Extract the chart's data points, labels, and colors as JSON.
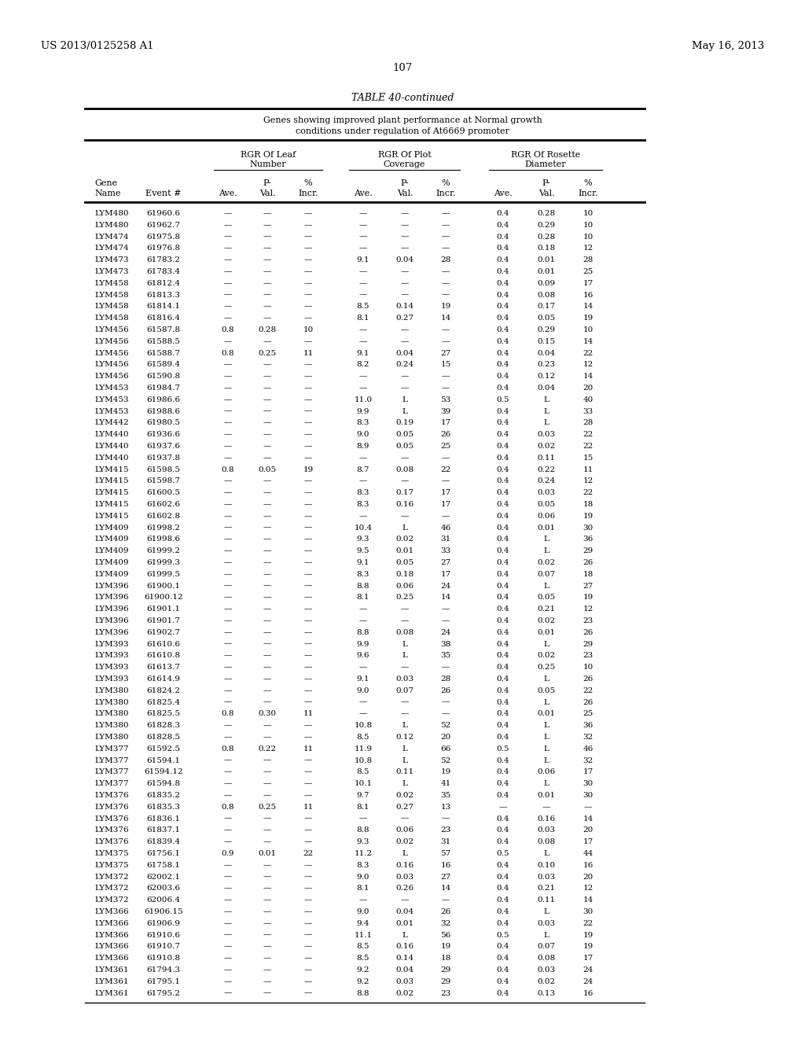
{
  "title_left": "US 2013/0125258 A1",
  "title_right": "May 16, 2013",
  "page_number": "107",
  "table_title": "TABLE 40-continued",
  "table_subtitle1": "Genes showing improved plant performance at Normal growth",
  "table_subtitle2": "conditions under regulation of At6669 promoter",
  "rows": [
    [
      "LYM480",
      "61960.6",
      "—",
      "—",
      "—",
      "—",
      "—",
      "—",
      "0.4",
      "0.28",
      "10"
    ],
    [
      "LYM480",
      "61962.7",
      "—",
      "—",
      "—",
      "—",
      "—",
      "—",
      "0.4",
      "0.29",
      "10"
    ],
    [
      "LYM474",
      "61975.8",
      "—",
      "—",
      "—",
      "—",
      "—",
      "—",
      "0.4",
      "0.28",
      "10"
    ],
    [
      "LYM474",
      "61976.8",
      "—",
      "—",
      "—",
      "—",
      "—",
      "—",
      "0.4",
      "0.18",
      "12"
    ],
    [
      "LYM473",
      "61783.2",
      "—",
      "—",
      "—",
      "9.1",
      "0.04",
      "28",
      "0.4",
      "0.01",
      "28"
    ],
    [
      "LYM473",
      "61783.4",
      "—",
      "—",
      "—",
      "—",
      "—",
      "—",
      "0.4",
      "0.01",
      "25"
    ],
    [
      "LYM458",
      "61812.4",
      "—",
      "—",
      "—",
      "—",
      "—",
      "—",
      "0.4",
      "0.09",
      "17"
    ],
    [
      "LYM458",
      "61813.3",
      "—",
      "—",
      "—",
      "—",
      "—",
      "—",
      "0.4",
      "0.08",
      "16"
    ],
    [
      "LYM458",
      "61814.1",
      "—",
      "—",
      "—",
      "8.5",
      "0.14",
      "19",
      "0.4",
      "0.17",
      "14"
    ],
    [
      "LYM458",
      "61816.4",
      "—",
      "—",
      "—",
      "8.1",
      "0.27",
      "14",
      "0.4",
      "0.05",
      "19"
    ],
    [
      "LYM456",
      "61587.8",
      "0.8",
      "0.28",
      "10",
      "—",
      "—",
      "—",
      "0.4",
      "0.29",
      "10"
    ],
    [
      "LYM456",
      "61588.5",
      "—",
      "—",
      "—",
      "—",
      "—",
      "—",
      "0.4",
      "0.15",
      "14"
    ],
    [
      "LYM456",
      "61588.7",
      "0.8",
      "0.25",
      "11",
      "9.1",
      "0.04",
      "27",
      "0.4",
      "0.04",
      "22"
    ],
    [
      "LYM456",
      "61589.4",
      "—",
      "—",
      "—",
      "8.2",
      "0.24",
      "15",
      "0.4",
      "0.23",
      "12"
    ],
    [
      "LYM456",
      "61590.8",
      "—",
      "—",
      "—",
      "—",
      "—",
      "—",
      "0.4",
      "0.12",
      "14"
    ],
    [
      "LYM453",
      "61984.7",
      "—",
      "—",
      "—",
      "—",
      "—",
      "—",
      "0.4",
      "0.04",
      "20"
    ],
    [
      "LYM453",
      "61986.6",
      "—",
      "—",
      "—",
      "11.0",
      "L",
      "53",
      "0.5",
      "L",
      "40"
    ],
    [
      "LYM453",
      "61988.6",
      "—",
      "—",
      "—",
      "9.9",
      "L",
      "39",
      "0.4",
      "L",
      "33"
    ],
    [
      "LYM442",
      "61980.5",
      "—",
      "—",
      "—",
      "8.3",
      "0.19",
      "17",
      "0.4",
      "L",
      "28"
    ],
    [
      "LYM440",
      "61936.6",
      "—",
      "—",
      "—",
      "9.0",
      "0.05",
      "26",
      "0.4",
      "0.03",
      "22"
    ],
    [
      "LYM440",
      "61937.6",
      "—",
      "—",
      "—",
      "8.9",
      "0.05",
      "25",
      "0.4",
      "0.02",
      "22"
    ],
    [
      "LYM440",
      "61937.8",
      "—",
      "—",
      "—",
      "—",
      "—",
      "—",
      "0.4",
      "0.11",
      "15"
    ],
    [
      "LYM415",
      "61598.5",
      "0.8",
      "0.05",
      "19",
      "8.7",
      "0.08",
      "22",
      "0.4",
      "0.22",
      "11"
    ],
    [
      "LYM415",
      "61598.7",
      "—",
      "—",
      "—",
      "—",
      "—",
      "—",
      "0.4",
      "0.24",
      "12"
    ],
    [
      "LYM415",
      "61600.5",
      "—",
      "—",
      "—",
      "8.3",
      "0.17",
      "17",
      "0.4",
      "0.03",
      "22"
    ],
    [
      "LYM415",
      "61602.6",
      "—",
      "—",
      "—",
      "8.3",
      "0.16",
      "17",
      "0.4",
      "0.05",
      "18"
    ],
    [
      "LYM415",
      "61602.8",
      "—",
      "—",
      "—",
      "—",
      "—",
      "—",
      "0.4",
      "0.06",
      "19"
    ],
    [
      "LYM409",
      "61998.2",
      "—",
      "—",
      "—",
      "10.4",
      "L",
      "46",
      "0.4",
      "0.01",
      "30"
    ],
    [
      "LYM409",
      "61998.6",
      "—",
      "—",
      "—",
      "9.3",
      "0.02",
      "31",
      "0.4",
      "L",
      "36"
    ],
    [
      "LYM409",
      "61999.2",
      "—",
      "—",
      "—",
      "9.5",
      "0.01",
      "33",
      "0.4",
      "L",
      "29"
    ],
    [
      "LYM409",
      "61999.3",
      "—",
      "—",
      "—",
      "9.1",
      "0.05",
      "27",
      "0.4",
      "0.02",
      "26"
    ],
    [
      "LYM409",
      "61999.5",
      "—",
      "—",
      "—",
      "8.3",
      "0.18",
      "17",
      "0.4",
      "0.07",
      "18"
    ],
    [
      "LYM396",
      "61900.1",
      "—",
      "—",
      "—",
      "8.8",
      "0.06",
      "24",
      "0.4",
      "L",
      "27"
    ],
    [
      "LYM396",
      "61900.12",
      "—",
      "—",
      "—",
      "8.1",
      "0.25",
      "14",
      "0.4",
      "0.05",
      "19"
    ],
    [
      "LYM396",
      "61901.1",
      "—",
      "—",
      "—",
      "—",
      "—",
      "—",
      "0.4",
      "0.21",
      "12"
    ],
    [
      "LYM396",
      "61901.7",
      "—",
      "—",
      "—",
      "—",
      "—",
      "—",
      "0.4",
      "0.02",
      "23"
    ],
    [
      "LYM396",
      "61902.7",
      "—",
      "—",
      "—",
      "8.8",
      "0.08",
      "24",
      "0.4",
      "0.01",
      "26"
    ],
    [
      "LYM393",
      "61610.6",
      "—",
      "—",
      "—",
      "9.9",
      "L",
      "38",
      "0.4",
      "L",
      "29"
    ],
    [
      "LYM393",
      "61610.8",
      "—",
      "—",
      "—",
      "9.6",
      "L",
      "35",
      "0.4",
      "0.02",
      "23"
    ],
    [
      "LYM393",
      "61613.7",
      "—",
      "—",
      "—",
      "—",
      "—",
      "—",
      "0.4",
      "0.25",
      "10"
    ],
    [
      "LYM393",
      "61614.9",
      "—",
      "—",
      "—",
      "9.1",
      "0.03",
      "28",
      "0.4",
      "L",
      "26"
    ],
    [
      "LYM380",
      "61824.2",
      "—",
      "—",
      "—",
      "9.0",
      "0.07",
      "26",
      "0.4",
      "0.05",
      "22"
    ],
    [
      "LYM380",
      "61825.4",
      "—",
      "—",
      "—",
      "—",
      "—",
      "—",
      "0.4",
      "L",
      "26"
    ],
    [
      "LYM380",
      "61825.5",
      "0.8",
      "0.30",
      "11",
      "—",
      "—",
      "—",
      "0.4",
      "0.01",
      "25"
    ],
    [
      "LYM380",
      "61828.3",
      "—",
      "—",
      "—",
      "10.8",
      "L",
      "52",
      "0.4",
      "L",
      "36"
    ],
    [
      "LYM380",
      "61828.5",
      "—",
      "—",
      "—",
      "8.5",
      "0.12",
      "20",
      "0.4",
      "L",
      "32"
    ],
    [
      "LYM377",
      "61592.5",
      "0.8",
      "0.22",
      "11",
      "11.9",
      "L",
      "66",
      "0.5",
      "L",
      "46"
    ],
    [
      "LYM377",
      "61594.1",
      "—",
      "—",
      "—",
      "10.8",
      "L",
      "52",
      "0.4",
      "L",
      "32"
    ],
    [
      "LYM377",
      "61594.12",
      "—",
      "—",
      "—",
      "8.5",
      "0.11",
      "19",
      "0.4",
      "0.06",
      "17"
    ],
    [
      "LYM377",
      "61594.8",
      "—",
      "—",
      "—",
      "10.1",
      "L",
      "41",
      "0.4",
      "L",
      "30"
    ],
    [
      "LYM376",
      "61835.2",
      "—",
      "—",
      "—",
      "9.7",
      "0.02",
      "35",
      "0.4",
      "0.01",
      "30"
    ],
    [
      "LYM376",
      "61835.3",
      "0.8",
      "0.25",
      "11",
      "8.1",
      "0.27",
      "13",
      "—",
      "—",
      "—"
    ],
    [
      "LYM376",
      "61836.1",
      "—",
      "—",
      "—",
      "—",
      "—",
      "—",
      "0.4",
      "0.16",
      "14"
    ],
    [
      "LYM376",
      "61837.1",
      "—",
      "—",
      "—",
      "8.8",
      "0.06",
      "23",
      "0.4",
      "0.03",
      "20"
    ],
    [
      "LYM376",
      "61839.4",
      "—",
      "—",
      "—",
      "9.3",
      "0.02",
      "31",
      "0.4",
      "0.08",
      "17"
    ],
    [
      "LYM375",
      "61756.1",
      "0.9",
      "0.01",
      "22",
      "11.2",
      "L",
      "57",
      "0.5",
      "L",
      "44"
    ],
    [
      "LYM375",
      "61758.1",
      "—",
      "—",
      "—",
      "8.3",
      "0.16",
      "16",
      "0.4",
      "0.10",
      "16"
    ],
    [
      "LYM372",
      "62002.1",
      "—",
      "—",
      "—",
      "9.0",
      "0.03",
      "27",
      "0.4",
      "0.03",
      "20"
    ],
    [
      "LYM372",
      "62003.6",
      "—",
      "—",
      "—",
      "8.1",
      "0.26",
      "14",
      "0.4",
      "0.21",
      "12"
    ],
    [
      "LYM372",
      "62006.4",
      "—",
      "—",
      "—",
      "—",
      "—",
      "—",
      "0.4",
      "0.11",
      "14"
    ],
    [
      "LYM366",
      "61906.15",
      "—",
      "—",
      "—",
      "9.0",
      "0.04",
      "26",
      "0.4",
      "L",
      "30"
    ],
    [
      "LYM366",
      "61906.9",
      "—",
      "—",
      "—",
      "9.4",
      "0.01",
      "32",
      "0.4",
      "0.03",
      "22"
    ],
    [
      "LYM366",
      "61910.6",
      "—",
      "—",
      "—",
      "11.1",
      "L",
      "56",
      "0.5",
      "L",
      "19"
    ],
    [
      "LYM366",
      "61910.7",
      "—",
      "—",
      "—",
      "8.5",
      "0.16",
      "19",
      "0.4",
      "0.07",
      "19"
    ],
    [
      "LYM366",
      "61910.8",
      "—",
      "—",
      "—",
      "8.5",
      "0.14",
      "18",
      "0.4",
      "0.08",
      "17"
    ],
    [
      "LYM361",
      "61794.3",
      "—",
      "—",
      "—",
      "9.2",
      "0.04",
      "29",
      "0.4",
      "0.03",
      "24"
    ],
    [
      "LYM361",
      "61795.1",
      "—",
      "—",
      "—",
      "9.2",
      "0.03",
      "29",
      "0.4",
      "0.02",
      "24"
    ],
    [
      "LYM361",
      "61795.2",
      "—",
      "—",
      "—",
      "8.8",
      "0.02",
      "23",
      "0.4",
      "0.13",
      "16"
    ]
  ]
}
